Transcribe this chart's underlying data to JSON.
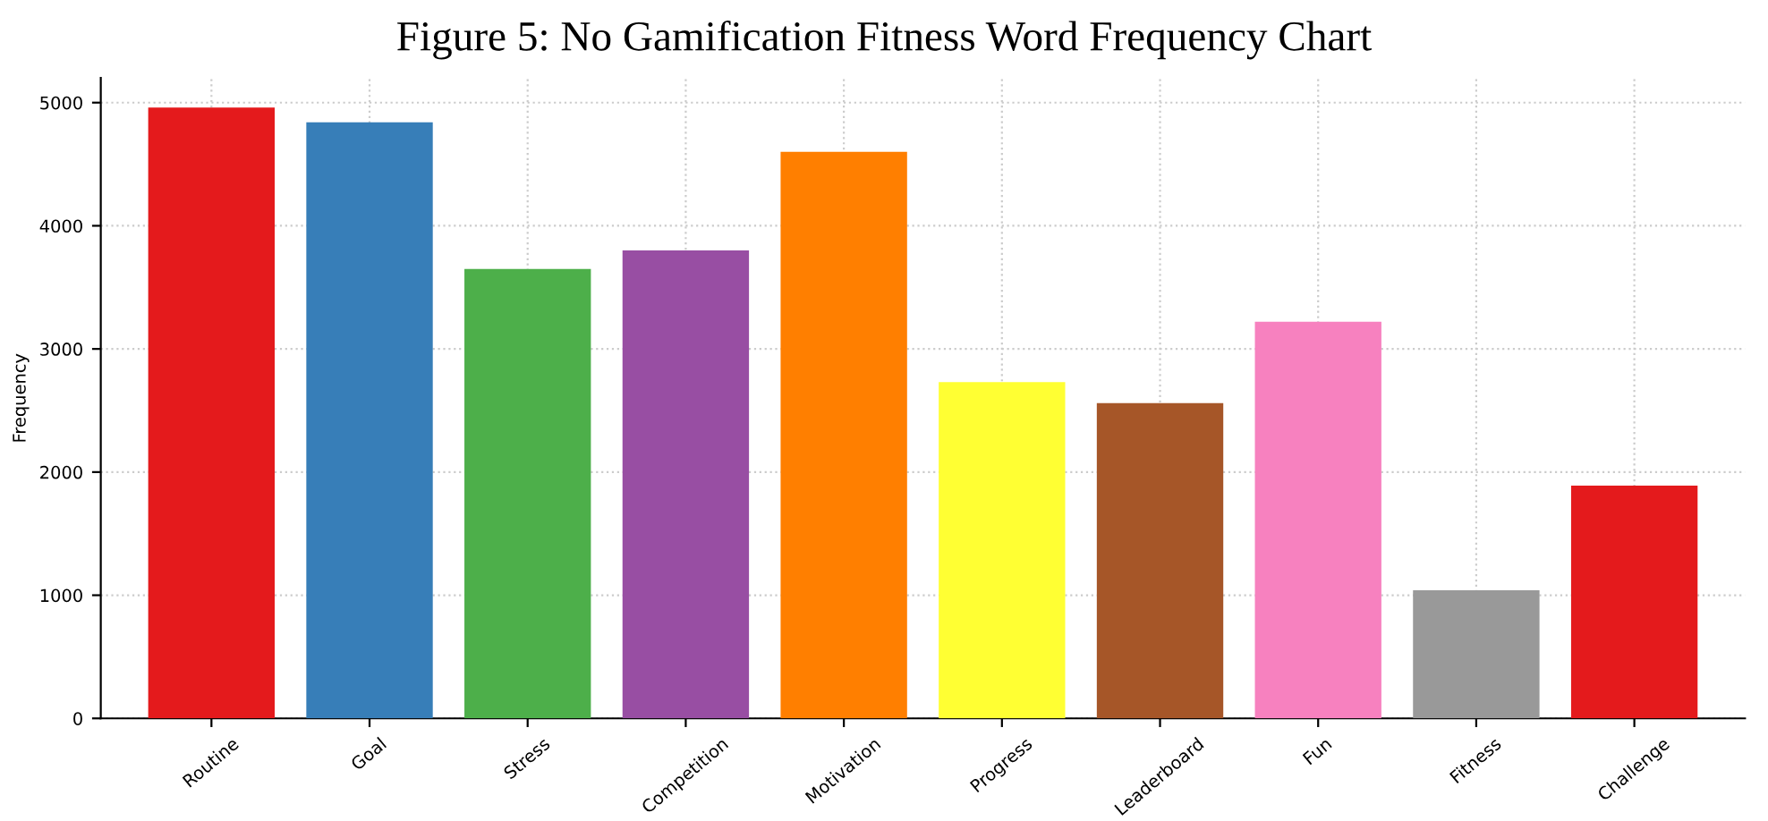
{
  "chart_data": {
    "type": "bar",
    "title": "Figure 5: No Gamification Fitness Word Frequency Chart",
    "ylabel": "Frequency",
    "categories": [
      "Routine",
      "Goal",
      "Stress",
      "Competition",
      "Motivation",
      "Progress",
      "Leaderboard",
      "Fun",
      "Fitness",
      "Challenge"
    ],
    "values": [
      4960,
      4840,
      3650,
      3800,
      4600,
      2730,
      2560,
      3220,
      1040,
      1890
    ],
    "colors": [
      "#e41a1c",
      "#377eb8",
      "#4daf4a",
      "#984ea3",
      "#ff7f00",
      "#ffff33",
      "#a65628",
      "#f781bf",
      "#999999",
      "#e41a1c"
    ],
    "ylim": [
      0,
      5200
    ],
    "yticks": [
      0,
      1000,
      2000,
      3000,
      4000,
      5000
    ],
    "grid": true
  }
}
